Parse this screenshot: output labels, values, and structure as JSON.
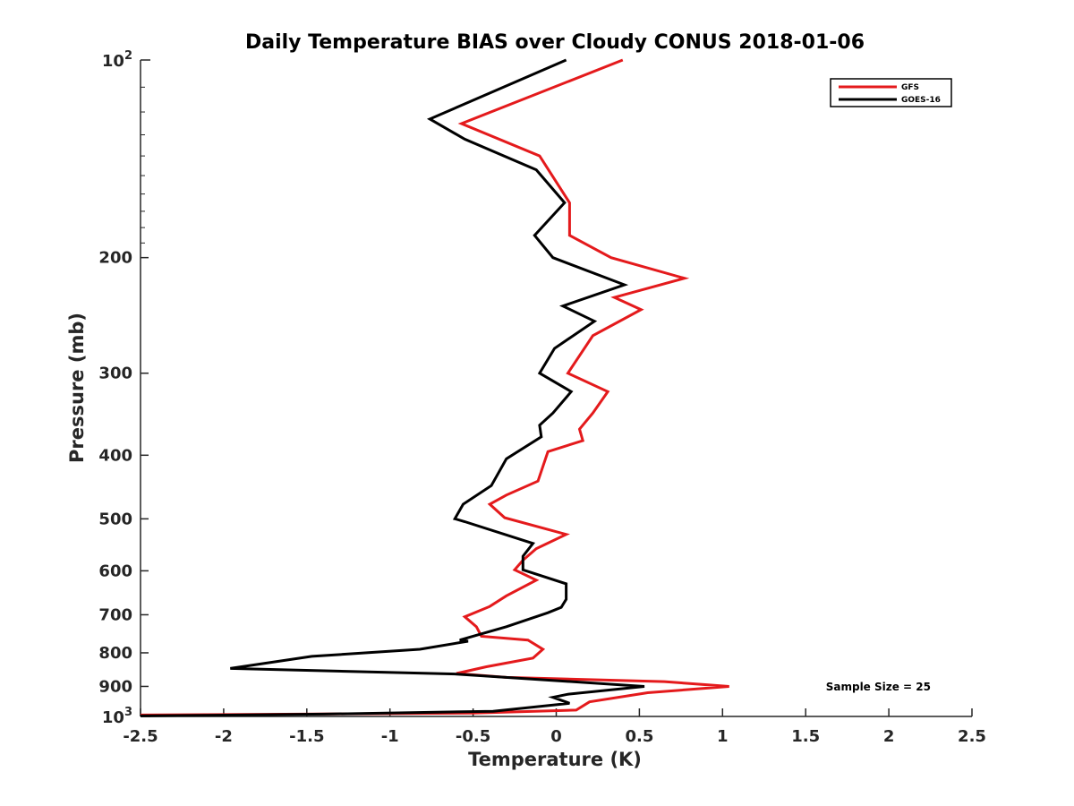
{
  "chart_data": {
    "type": "line",
    "title": "Daily Temperature BIAS over Cloudy CONUS 2018-01-06",
    "xlabel": "Temperature (K)",
    "ylabel": "Pressure (mb)",
    "xlim": [
      -2.5,
      2.5
    ],
    "ylim": [
      100,
      1000
    ],
    "y_scale": "log",
    "y_reversed": true,
    "grid": false,
    "x_ticks": [
      -2.5,
      -2,
      -1.5,
      -1,
      -0.5,
      0,
      0.5,
      1,
      1.5,
      2,
      2.5
    ],
    "x_tick_labels": [
      "-2.5",
      "-2",
      "-1.5",
      "-1",
      "-0.5",
      "0",
      "0.5",
      "1",
      "1.5",
      "2",
      "2.5"
    ],
    "y_ticks": [
      200,
      300,
      400,
      500,
      600,
      700,
      800,
      900
    ],
    "y_tick_labels": [
      "200",
      "300",
      "400",
      "500",
      "600",
      "700",
      "800",
      "900"
    ],
    "y_major_ticks": [
      {
        "value": 100,
        "base": "10",
        "exp": "2"
      },
      {
        "value": 1000,
        "base": "10",
        "exp": "3"
      }
    ],
    "legend_position": "top-right",
    "annotation": "Sample Size = 25",
    "series": [
      {
        "name": "GFS",
        "color": "#e41a1c",
        "points": [
          [
            0.4,
            100
          ],
          [
            -0.57,
            125
          ],
          [
            -0.1,
            140
          ],
          [
            0.08,
            165
          ],
          [
            0.08,
            185
          ],
          [
            0.33,
            200
          ],
          [
            0.77,
            215
          ],
          [
            0.35,
            230
          ],
          [
            0.51,
            240
          ],
          [
            0.22,
            263
          ],
          [
            0.07,
            300
          ],
          [
            0.31,
            320
          ],
          [
            0.22,
            345
          ],
          [
            0.14,
            365
          ],
          [
            0.16,
            380
          ],
          [
            -0.05,
            395
          ],
          [
            -0.11,
            438
          ],
          [
            -0.3,
            460
          ],
          [
            -0.4,
            475
          ],
          [
            -0.31,
            498
          ],
          [
            0.06,
            528
          ],
          [
            -0.12,
            555
          ],
          [
            -0.2,
            578
          ],
          [
            -0.25,
            598
          ],
          [
            -0.12,
            620
          ],
          [
            -0.3,
            655
          ],
          [
            -0.4,
            680
          ],
          [
            -0.55,
            705
          ],
          [
            -0.48,
            730
          ],
          [
            -0.45,
            755
          ],
          [
            -0.17,
            765
          ],
          [
            -0.08,
            790
          ],
          [
            -0.14,
            815
          ],
          [
            -0.42,
            840
          ],
          [
            -0.6,
            860
          ],
          [
            -0.3,
            872
          ],
          [
            0.65,
            885
          ],
          [
            1.04,
            900
          ],
          [
            0.55,
            920
          ],
          [
            0.2,
            950
          ],
          [
            0.12,
            978
          ],
          [
            -0.5,
            988
          ],
          [
            -2.5,
            995
          ]
        ]
      },
      {
        "name": "GOES-16",
        "color": "#000000",
        "points": [
          [
            0.06,
            100
          ],
          [
            -0.76,
            123
          ],
          [
            -0.55,
            132
          ],
          [
            -0.12,
            147
          ],
          [
            0.05,
            165
          ],
          [
            -0.13,
            185
          ],
          [
            -0.02,
            200
          ],
          [
            0.41,
            220
          ],
          [
            0.04,
            237
          ],
          [
            0.23,
            250
          ],
          [
            -0.01,
            275
          ],
          [
            -0.1,
            300
          ],
          [
            0.09,
            320
          ],
          [
            -0.02,
            345
          ],
          [
            -0.1,
            360
          ],
          [
            -0.09,
            375
          ],
          [
            -0.3,
            405
          ],
          [
            -0.39,
            445
          ],
          [
            -0.56,
            475
          ],
          [
            -0.61,
            500
          ],
          [
            -0.55,
            505
          ],
          [
            -0.14,
            545
          ],
          [
            -0.2,
            570
          ],
          [
            -0.2,
            598
          ],
          [
            0.06,
            628
          ],
          [
            0.06,
            663
          ],
          [
            0.03,
            682
          ],
          [
            -0.05,
            695
          ],
          [
            -0.3,
            730
          ],
          [
            -0.58,
            765
          ],
          [
            -0.53,
            768
          ],
          [
            -0.82,
            790
          ],
          [
            -1.47,
            810
          ],
          [
            -1.96,
            845
          ],
          [
            -0.6,
            862
          ],
          [
            0.53,
            900
          ],
          [
            0.07,
            925
          ],
          [
            -0.02,
            935
          ],
          [
            0.08,
            955
          ],
          [
            -0.38,
            982
          ],
          [
            -1.4,
            992
          ],
          [
            -2.5,
            998
          ]
        ]
      }
    ]
  }
}
